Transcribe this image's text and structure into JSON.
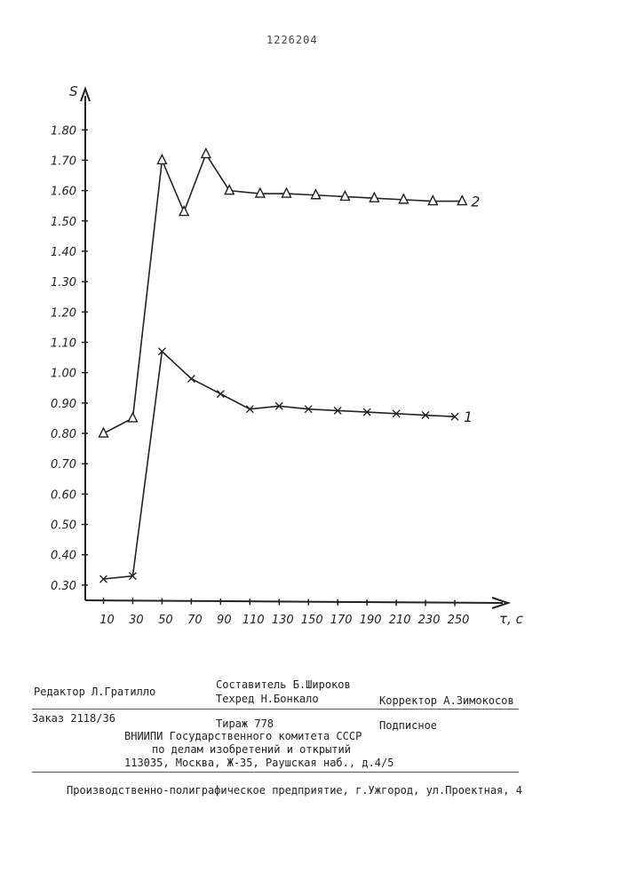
{
  "page": {
    "patent_number": "1226204"
  },
  "chart_data": {
    "type": "line",
    "xlabel": "τ, c",
    "ylabel": "S",
    "x_ticks": [
      "10",
      "30",
      "50",
      "70",
      "90",
      "110",
      "130",
      "150",
      "170",
      "190",
      "210",
      "230",
      "250"
    ],
    "y_ticks": [
      "0.30",
      "0.40",
      "0.50",
      "0.60",
      "0.70",
      "0.80",
      "0.90",
      "1.00",
      "1.10",
      "1.20",
      "1.30",
      "1.40",
      "1.50",
      "1.60",
      "1.70",
      "1.80"
    ],
    "xlim": [
      0,
      270
    ],
    "ylim": [
      0.25,
      1.95
    ],
    "series": [
      {
        "name": "1",
        "marker": "x",
        "x": [
          10,
          30,
          50,
          70,
          90,
          110,
          130,
          150,
          170,
          190,
          210,
          230,
          250
        ],
        "y": [
          0.32,
          0.33,
          1.07,
          0.98,
          0.93,
          0.88,
          0.89,
          0.88,
          0.875,
          0.87,
          0.865,
          0.86,
          0.855
        ]
      },
      {
        "name": "2",
        "marker": "triangle",
        "x": [
          10,
          30,
          50,
          65,
          80,
          96,
          117,
          135,
          155,
          175,
          195,
          215,
          235,
          255
        ],
        "y": [
          0.8,
          0.85,
          1.7,
          1.53,
          1.72,
          1.6,
          1.59,
          1.59,
          1.585,
          1.58,
          1.575,
          1.57,
          1.565,
          1.565
        ]
      }
    ]
  },
  "imprint": {
    "editor": "Редактор  Л.Гратилло",
    "compiler": "Составитель Б.Широков",
    "techred": "Техред Н.Бонкало",
    "corrector": "Корректор А.Зимокосов",
    "order": "Заказ  2118/36",
    "circulation": "Тираж 778",
    "subscription": "Подписное",
    "org_line1": "ВНИИПИ Государственного комитета СССР",
    "org_line2": "по делам изобретений и открытий",
    "org_line3": "113035, Москва, Ж-35, Раушская наб., д.4/5",
    "printer": "Производственно-полиграфическое предприятие, г.Ужгород, ул.Проектная, 4"
  }
}
